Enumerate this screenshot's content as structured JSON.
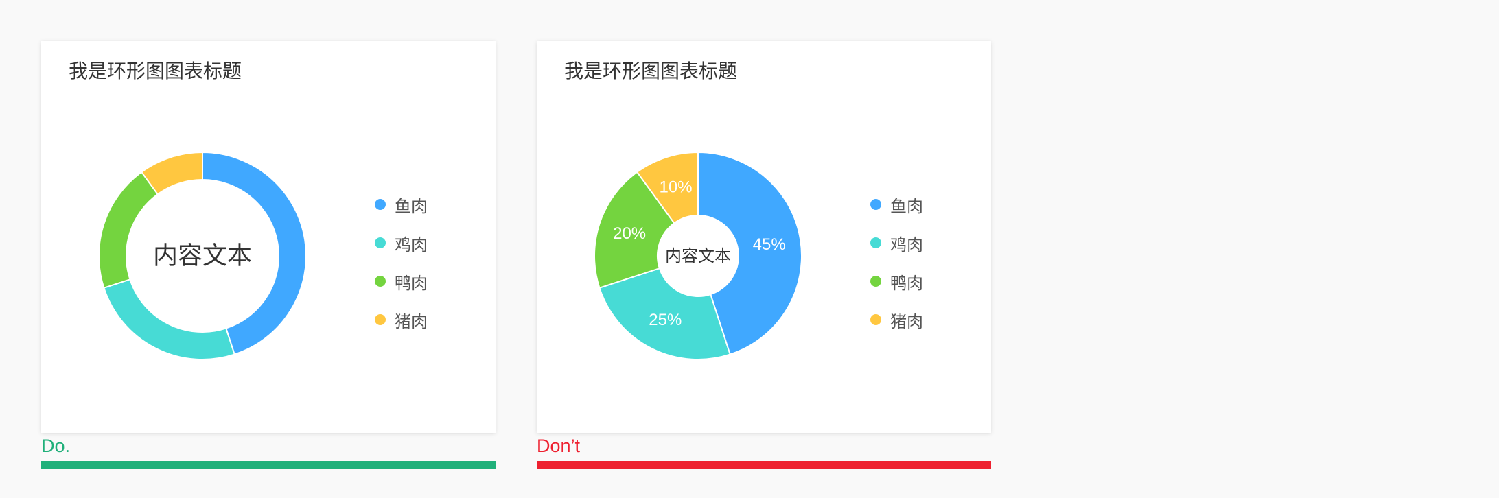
{
  "chart_data": [
    {
      "type": "pie",
      "variant": "donut-thin",
      "title": "我是环形图图表标题",
      "center_text": "内容文本",
      "show_slice_labels": false,
      "categories": [
        "鱼肉",
        "鸡肉",
        "鸭肉",
        "猪肉"
      ],
      "values": [
        45,
        25,
        20,
        10
      ],
      "colors": [
        "#40A8FF",
        "#47DBD5",
        "#74D43F",
        "#FFC740"
      ],
      "legend": "right"
    },
    {
      "type": "pie",
      "variant": "donut-thick",
      "title": "我是环形图图表标题",
      "center_text": "内容文本",
      "show_slice_labels": true,
      "slice_labels": [
        "45%",
        "25%",
        "20%",
        "10%"
      ],
      "categories": [
        "鱼肉",
        "鸡肉",
        "鸭肉",
        "猪肉"
      ],
      "values": [
        45,
        25,
        20,
        10
      ],
      "colors": [
        "#40A8FF",
        "#47DBD5",
        "#74D43F",
        "#FFC740"
      ],
      "legend": "right"
    }
  ],
  "verdicts": {
    "do": {
      "label": "Do.",
      "color": "#20B07A"
    },
    "dont": {
      "label": "Don’t",
      "color": "#EE2130"
    }
  }
}
